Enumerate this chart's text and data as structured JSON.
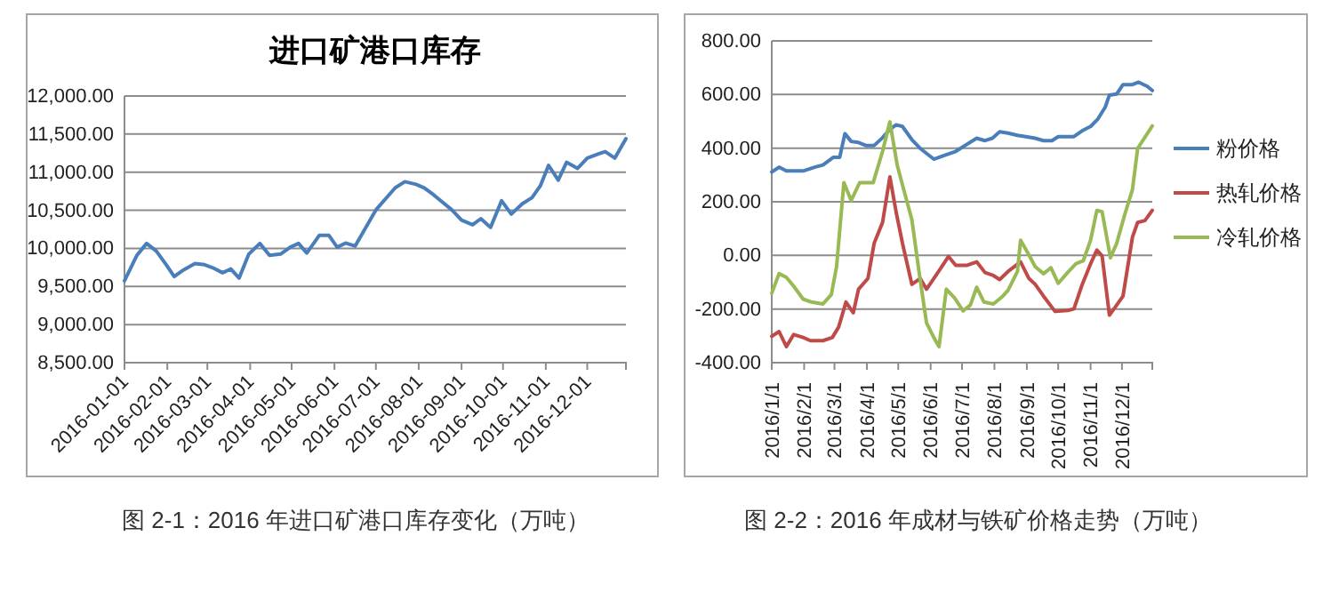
{
  "chart_data": [
    {
      "type": "line",
      "title": "进口矿港口库存",
      "annotations": [
        "图 2-1：2016 年进口矿港口库存变化（万吨）"
      ],
      "series": [
        {
          "color": "#4a7ebb",
          "x": [
            "2016-01-01",
            "2016-01-10",
            "2016-01-17",
            "2016-01-24",
            "2016-01-31",
            "2016-02-06",
            "2016-02-13",
            "2016-02-21",
            "2016-02-28",
            "2016-03-05",
            "2016-03-12",
            "2016-03-18",
            "2016-03-24",
            "2016-03-31",
            "2016-04-08",
            "2016-04-15",
            "2016-04-23",
            "2016-04-30",
            "2016-05-06",
            "2016-05-12",
            "2016-05-21",
            "2016-05-28",
            "2016-06-03",
            "2016-06-09",
            "2016-06-16",
            "2016-07-01",
            "2016-07-15",
            "2016-07-22",
            "2016-07-30",
            "2016-08-05",
            "2016-08-12",
            "2016-08-25",
            "2016-09-01",
            "2016-09-09",
            "2016-09-15",
            "2016-09-22",
            "2016-09-30",
            "2016-10-07",
            "2016-10-15",
            "2016-10-22",
            "2016-10-28",
            "2016-11-03",
            "2016-11-10",
            "2016-11-16",
            "2016-11-24",
            "2016-12-01",
            "2016-12-10",
            "2016-12-14",
            "2016-12-21",
            "2016-12-29"
          ],
          "values": [
            9575,
            9910,
            10065,
            9965,
            9790,
            9630,
            9720,
            9800,
            9785,
            9745,
            9680,
            9730,
            9610,
            9925,
            10065,
            9910,
            9925,
            10015,
            10065,
            9940,
            10170,
            10170,
            10015,
            10070,
            10030,
            10505,
            10795,
            10875,
            10840,
            10795,
            10700,
            10505,
            10370,
            10310,
            10390,
            10275,
            10625,
            10450,
            10585,
            10665,
            10820,
            11090,
            10895,
            11130,
            11050,
            11185,
            11245,
            11270,
            11185,
            11440
          ]
        }
      ],
      "xlim": [
        "2016-01-01",
        "2016-12-29"
      ],
      "xticks": [
        {
          "value": "2016-01-01",
          "label": "2016-01-01"
        },
        {
          "value": "2016-02-01",
          "label": "2016-02-01"
        },
        {
          "value": "2016-03-01",
          "label": "2016-03-01"
        },
        {
          "value": "2016-04-01",
          "label": "2016-04-01"
        },
        {
          "value": "2016-05-01",
          "label": "2016-05-01"
        },
        {
          "value": "2016-06-01",
          "label": "2016-06-01"
        },
        {
          "value": "2016-07-01",
          "label": "2016-07-01"
        },
        {
          "value": "2016-08-01",
          "label": "2016-08-01"
        },
        {
          "value": "2016-09-01",
          "label": "2016-09-01"
        },
        {
          "value": "2016-10-01",
          "label": "2016-10-01"
        },
        {
          "value": "2016-11-01",
          "label": "2016-11-01"
        },
        {
          "value": "2016-12-01",
          "label": "2016-12-01"
        }
      ],
      "ylim": [
        8500,
        12000
      ],
      "yticks": [
        {
          "value": 8500,
          "label": "8,500.00"
        },
        {
          "value": 9000,
          "label": "9,000.00"
        },
        {
          "value": 9500,
          "label": "9,500.00"
        },
        {
          "value": 10000,
          "label": "10,000.00"
        },
        {
          "value": 10500,
          "label": "10,500.00"
        },
        {
          "value": 11000,
          "label": "11,000.00"
        },
        {
          "value": 11500,
          "label": "11,500.00"
        },
        {
          "value": 12000,
          "label": "12,000.00"
        }
      ],
      "grid": "y",
      "legend": false
    },
    {
      "type": "line",
      "annotations": [
        "图 2-2：2016 年成材与铁矿价格走势（万吨）"
      ],
      "series": [
        {
          "name": "粉价格",
          "color": "#4a7ebb",
          "x": [
            "2016-01-01",
            "2016-01-08",
            "2016-01-15",
            "2016-01-31",
            "2016-02-11",
            "2016-02-19",
            "2016-02-29",
            "2016-03-06",
            "2016-03-11",
            "2016-03-17",
            "2016-03-24",
            "2016-03-31",
            "2016-04-08",
            "2016-04-16",
            "2016-04-23",
            "2016-04-29",
            "2016-05-05",
            "2016-05-14",
            "2016-05-22",
            "2016-06-04",
            "2016-06-14",
            "2016-06-25",
            "2016-07-06",
            "2016-07-15",
            "2016-07-23",
            "2016-07-30",
            "2016-08-06",
            "2016-08-14",
            "2016-08-23",
            "2016-08-31",
            "2016-09-09",
            "2016-09-17",
            "2016-09-25",
            "2016-10-01",
            "2016-10-10",
            "2016-10-16",
            "2016-10-24",
            "2016-11-01",
            "2016-11-08",
            "2016-11-15",
            "2016-11-19",
            "2016-11-26",
            "2016-12-02",
            "2016-12-11",
            "2016-12-17",
            "2016-12-25",
            "2016-12-30"
          ],
          "values": [
            311,
            329,
            315,
            315,
            329,
            337,
            366,
            366,
            454,
            425,
            421,
            410,
            410,
            439,
            470,
            487,
            481,
            432,
            399,
            359,
            373,
            388,
            415,
            437,
            428,
            437,
            461,
            456,
            448,
            443,
            437,
            428,
            428,
            443,
            443,
            443,
            465,
            481,
            509,
            553,
            598,
            602,
            637,
            637,
            646,
            631,
            615
          ]
        },
        {
          "name": "热轧价格",
          "color": "#be4b48",
          "x": [
            "2016-01-01",
            "2016-01-08",
            "2016-01-15",
            "2016-01-22",
            "2016-01-31",
            "2016-02-07",
            "2016-02-19",
            "2016-02-28",
            "2016-03-05",
            "2016-03-12",
            "2016-03-19",
            "2016-03-24",
            "2016-04-02",
            "2016-04-08",
            "2016-04-16",
            "2016-04-23",
            "2016-04-29",
            "2016-05-05",
            "2016-05-14",
            "2016-05-22",
            "2016-05-28",
            "2016-06-04",
            "2016-06-11",
            "2016-06-18",
            "2016-06-25",
            "2016-07-06",
            "2016-07-15",
            "2016-07-23",
            "2016-07-31",
            "2016-08-06",
            "2016-08-14",
            "2016-08-26",
            "2016-09-03",
            "2016-09-09",
            "2016-09-17",
            "2016-09-28",
            "2016-10-10",
            "2016-10-16",
            "2016-10-24",
            "2016-11-01",
            "2016-11-07",
            "2016-11-12",
            "2016-11-19",
            "2016-11-26",
            "2016-12-02",
            "2016-12-11",
            "2016-12-16",
            "2016-12-23",
            "2016-12-30"
          ],
          "values": [
            -302,
            -284,
            -340,
            -295,
            -306,
            -318,
            -318,
            -306,
            -267,
            -174,
            -214,
            -126,
            -86,
            46,
            123,
            293,
            161,
            46,
            -108,
            -86,
            -126,
            -86,
            -46,
            -4,
            -37,
            -37,
            -24,
            -64,
            -75,
            -90,
            -60,
            -24,
            -86,
            -108,
            -152,
            -209,
            -205,
            -200,
            -108,
            -31,
            20,
            -2,
            -223,
            -185,
            -152,
            68,
            123,
            130,
            168
          ]
        },
        {
          "name": "冷轧价格",
          "color": "#98b954",
          "x": [
            "2016-01-01",
            "2016-01-08",
            "2016-01-15",
            "2016-01-22",
            "2016-01-31",
            "2016-02-08",
            "2016-02-19",
            "2016-02-27",
            "2016-03-03",
            "2016-03-10",
            "2016-03-17",
            "2016-03-25",
            "2016-04-07",
            "2016-04-16",
            "2016-04-23",
            "2016-04-30",
            "2016-05-06",
            "2016-05-14",
            "2016-05-21",
            "2016-05-28",
            "2016-06-04",
            "2016-06-09",
            "2016-06-16",
            "2016-06-24",
            "2016-07-02",
            "2016-07-09",
            "2016-07-15",
            "2016-07-22",
            "2016-07-31",
            "2016-08-09",
            "2016-08-14",
            "2016-08-23",
            "2016-08-26",
            "2016-09-03",
            "2016-09-09",
            "2016-09-17",
            "2016-09-24",
            "2016-10-01",
            "2016-10-10",
            "2016-10-18",
            "2016-10-25",
            "2016-11-01",
            "2016-11-07",
            "2016-11-12",
            "2016-11-20",
            "2016-11-26",
            "2016-12-04",
            "2016-12-11",
            "2016-12-16",
            "2016-12-30"
          ],
          "values": [
            -141,
            -68,
            -82,
            -115,
            -163,
            -174,
            -181,
            -146,
            -42,
            271,
            205,
            271,
            271,
            388,
            498,
            337,
            249,
            134,
            -64,
            -251,
            -306,
            -340,
            -126,
            -159,
            -207,
            -185,
            -119,
            -174,
            -181,
            -152,
            -130,
            -60,
            57,
            2,
            -42,
            -68,
            -46,
            -104,
            -64,
            -31,
            -20,
            57,
            168,
            163,
            -9,
            46,
            157,
            245,
            399,
            483
          ]
        }
      ],
      "xlim": [
        "2016-01-01",
        "2016-12-30"
      ],
      "xticks": [
        {
          "value": "2016-01-01",
          "label": "2016/1/1"
        },
        {
          "value": "2016-02-01",
          "label": "2016/2/1"
        },
        {
          "value": "2016-03-01",
          "label": "2016/3/1"
        },
        {
          "value": "2016-04-01",
          "label": "2016/4/1"
        },
        {
          "value": "2016-05-01",
          "label": "2016/5/1"
        },
        {
          "value": "2016-06-01",
          "label": "2016/6/1"
        },
        {
          "value": "2016-07-01",
          "label": "2016/7/1"
        },
        {
          "value": "2016-08-01",
          "label": "2016/8/1"
        },
        {
          "value": "2016-09-01",
          "label": "2016/9/1"
        },
        {
          "value": "2016-10-01",
          "label": "2016/10/1"
        },
        {
          "value": "2016-11-01",
          "label": "2016/11/1"
        },
        {
          "value": "2016-12-01",
          "label": "2016/12/1"
        }
      ],
      "ylim": [
        -400,
        800
      ],
      "yticks": [
        {
          "value": -400,
          "label": "-400.00"
        },
        {
          "value": -200,
          "label": "-200.00"
        },
        {
          "value": 0,
          "label": "0.00"
        },
        {
          "value": 200,
          "label": "200.00"
        },
        {
          "value": 400,
          "label": "400.00"
        },
        {
          "value": 600,
          "label": "600.00"
        },
        {
          "value": 800,
          "label": "800.00"
        }
      ],
      "grid": "y",
      "legend": "right"
    }
  ]
}
